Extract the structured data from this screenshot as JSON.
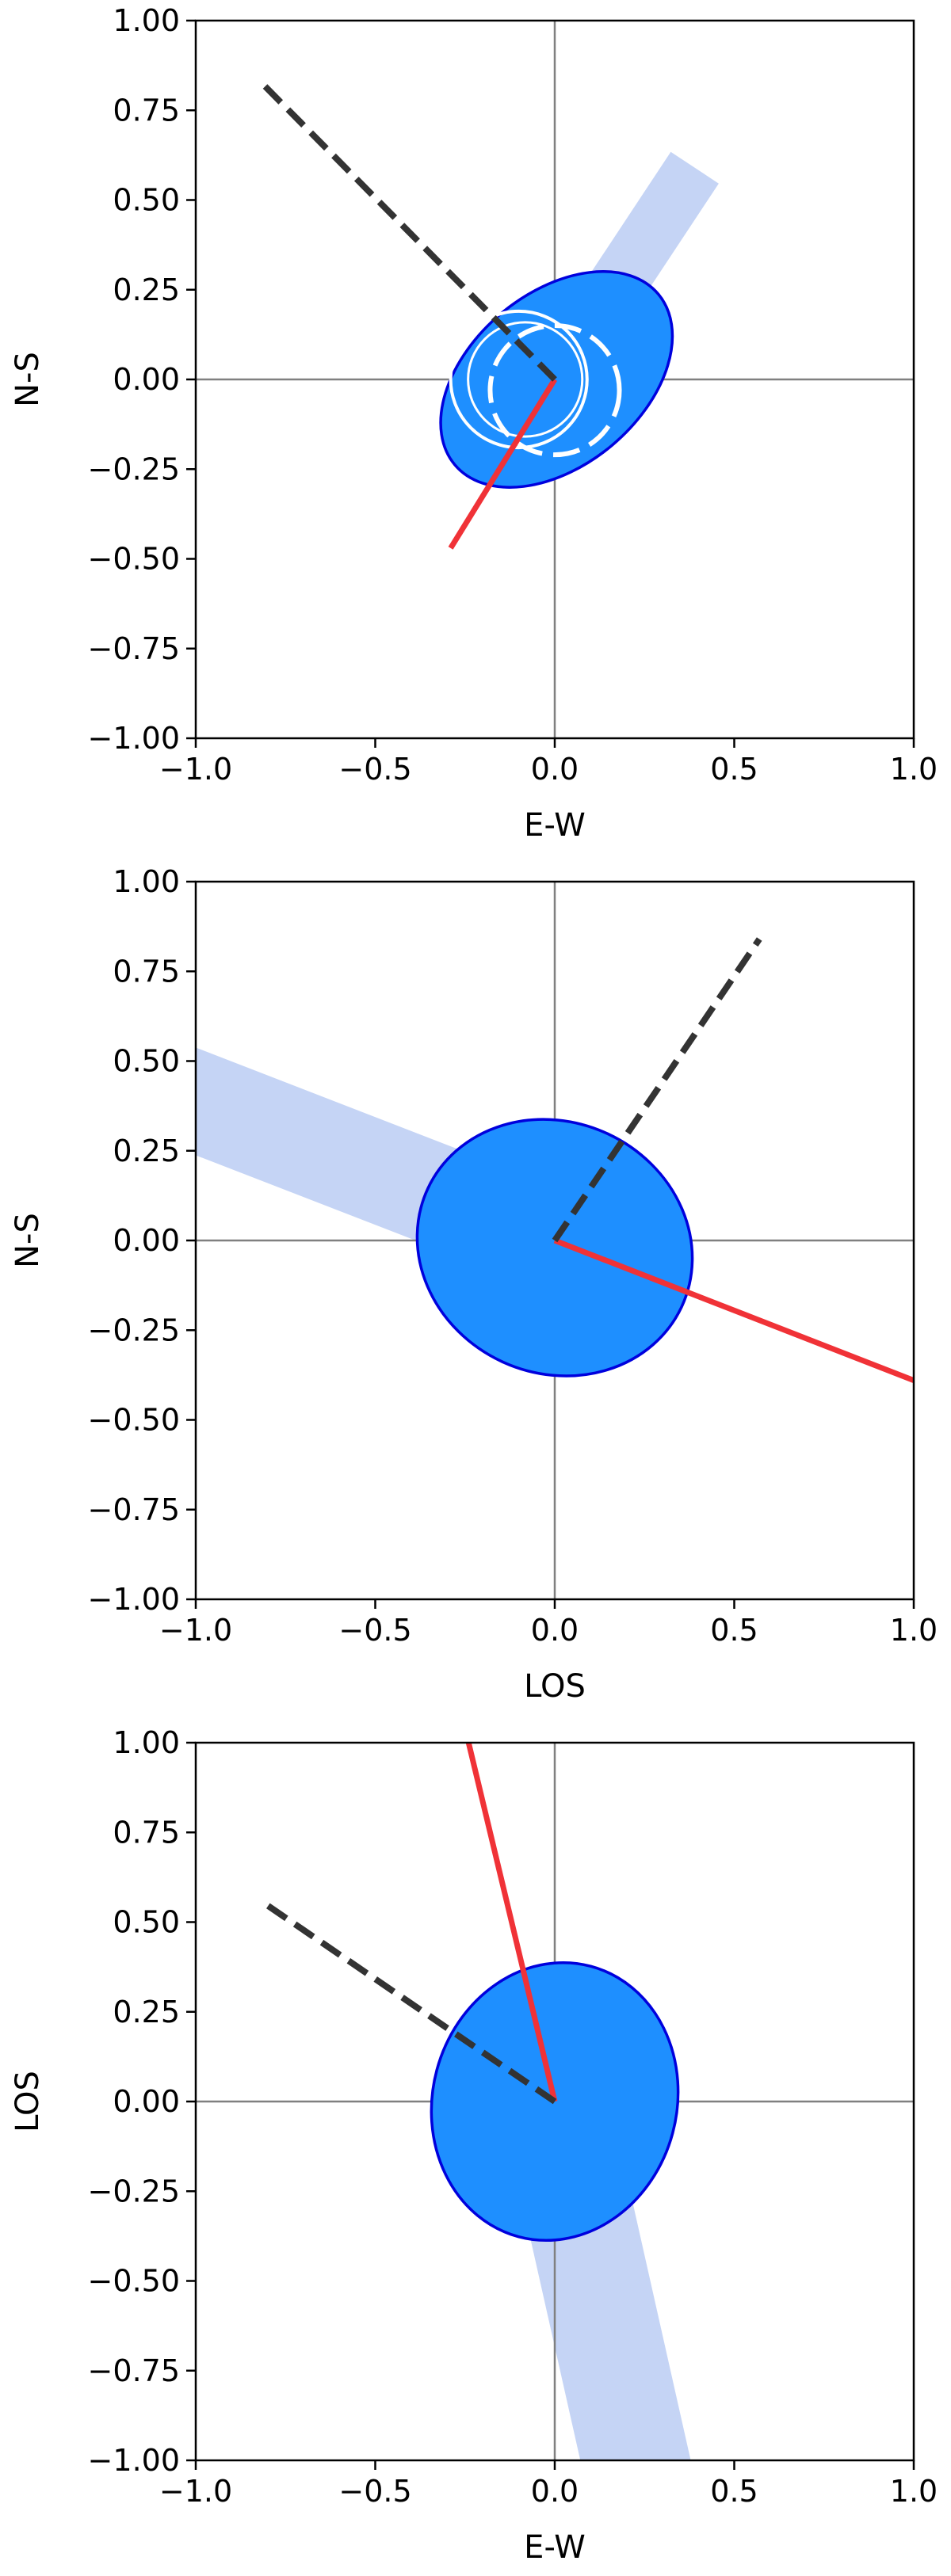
{
  "chart_data": [
    {
      "type": "scatter",
      "xlabel": "E-W",
      "ylabel": "N-S",
      "xlim": [
        -1.0,
        1.0
      ],
      "ylim": [
        -1.0,
        1.0
      ],
      "xticks": [
        "−1.0",
        "−0.5",
        "0.0",
        "0.5",
        "1.0"
      ],
      "yticks": [
        "1.00",
        "0.75",
        "0.50",
        "0.25",
        "0.00",
        "−0.25",
        "−0.50",
        "−0.75",
        "−1.00"
      ],
      "grid": false,
      "ellipse": {
        "center": [
          0.005,
          0.0
        ],
        "semi_major": 0.37,
        "semi_minor": 0.24,
        "angle_deg": 40,
        "fill": "#1e8fff",
        "edge": "#0000dd"
      },
      "band": {
        "from": [
          0.0,
          0.0
        ],
        "to": [
          0.39,
          0.59
        ],
        "width": 0.16,
        "color": "#c5d4f5"
      },
      "dashed_vector": [
        -0.82,
        0.83
      ],
      "solid_vector": [
        -0.29,
        -0.47
      ],
      "white_circle_solid": {
        "center": [
          -0.1,
          0.0
        ],
        "radius": 0.19
      },
      "white_circle_dashed": {
        "center": [
          0.0,
          -0.03
        ],
        "radius": 0.18
      },
      "colors": {
        "solid_vector": "#f03237",
        "dashed_vector": "#333333",
        "axis_lines": "#808080"
      }
    },
    {
      "type": "scatter",
      "xlabel": "LOS",
      "ylabel": "N-S",
      "xlim": [
        -1.0,
        1.0
      ],
      "ylim": [
        -1.0,
        1.0
      ],
      "xticks": [
        "−1.0",
        "−0.5",
        "0.0",
        "0.5",
        "1.0"
      ],
      "yticks": [
        "1.00",
        "0.75",
        "0.50",
        "0.25",
        "0.00",
        "−0.25",
        "−0.50",
        "−0.75",
        "−1.00"
      ],
      "grid": false,
      "ellipse": {
        "center": [
          0.0,
          -0.02
        ],
        "semi_major": 0.39,
        "semi_minor": 0.35,
        "angle_deg": -25,
        "fill": "#1e8fff",
        "edge": "#0000dd"
      },
      "band": {
        "from": [
          0.0,
          0.0
        ],
        "to": [
          -1.2,
          0.465
        ],
        "width": 0.28,
        "color": "#c5d4f5"
      },
      "dashed_vector": [
        0.57,
        0.84
      ],
      "solid_vector": [
        1.0,
        -0.39
      ],
      "colors": {
        "solid_vector": "#f03237",
        "dashed_vector": "#333333",
        "axis_lines": "#808080"
      }
    },
    {
      "type": "scatter",
      "xlabel": "E-W",
      "ylabel": "LOS",
      "xlim": [
        -1.0,
        1.0
      ],
      "ylim": [
        -1.0,
        1.0
      ],
      "xticks": [
        "−1.0",
        "−0.5",
        "0.0",
        "0.5",
        "1.0"
      ],
      "yticks": [
        "1.00",
        "0.75",
        "0.50",
        "0.25",
        "0.00",
        "−0.25",
        "−0.50",
        "−0.75",
        "−1.00"
      ],
      "grid": false,
      "ellipse": {
        "center": [
          0.0,
          0.0
        ],
        "semi_major": 0.39,
        "semi_minor": 0.34,
        "angle_deg": 75,
        "fill": "#1e8fff",
        "edge": "#0000dd"
      },
      "band": {
        "from": [
          0.0,
          0.0
        ],
        "to": [
          0.27,
          -1.2
        ],
        "width": 0.3,
        "color": "#c5d4f5"
      },
      "dashed_vector": [
        -0.82,
        0.56
      ],
      "solid_vector": [
        -0.24,
        1.0
      ],
      "colors": {
        "solid_vector": "#f03237",
        "dashed_vector": "#333333",
        "axis_lines": "#808080"
      }
    }
  ]
}
